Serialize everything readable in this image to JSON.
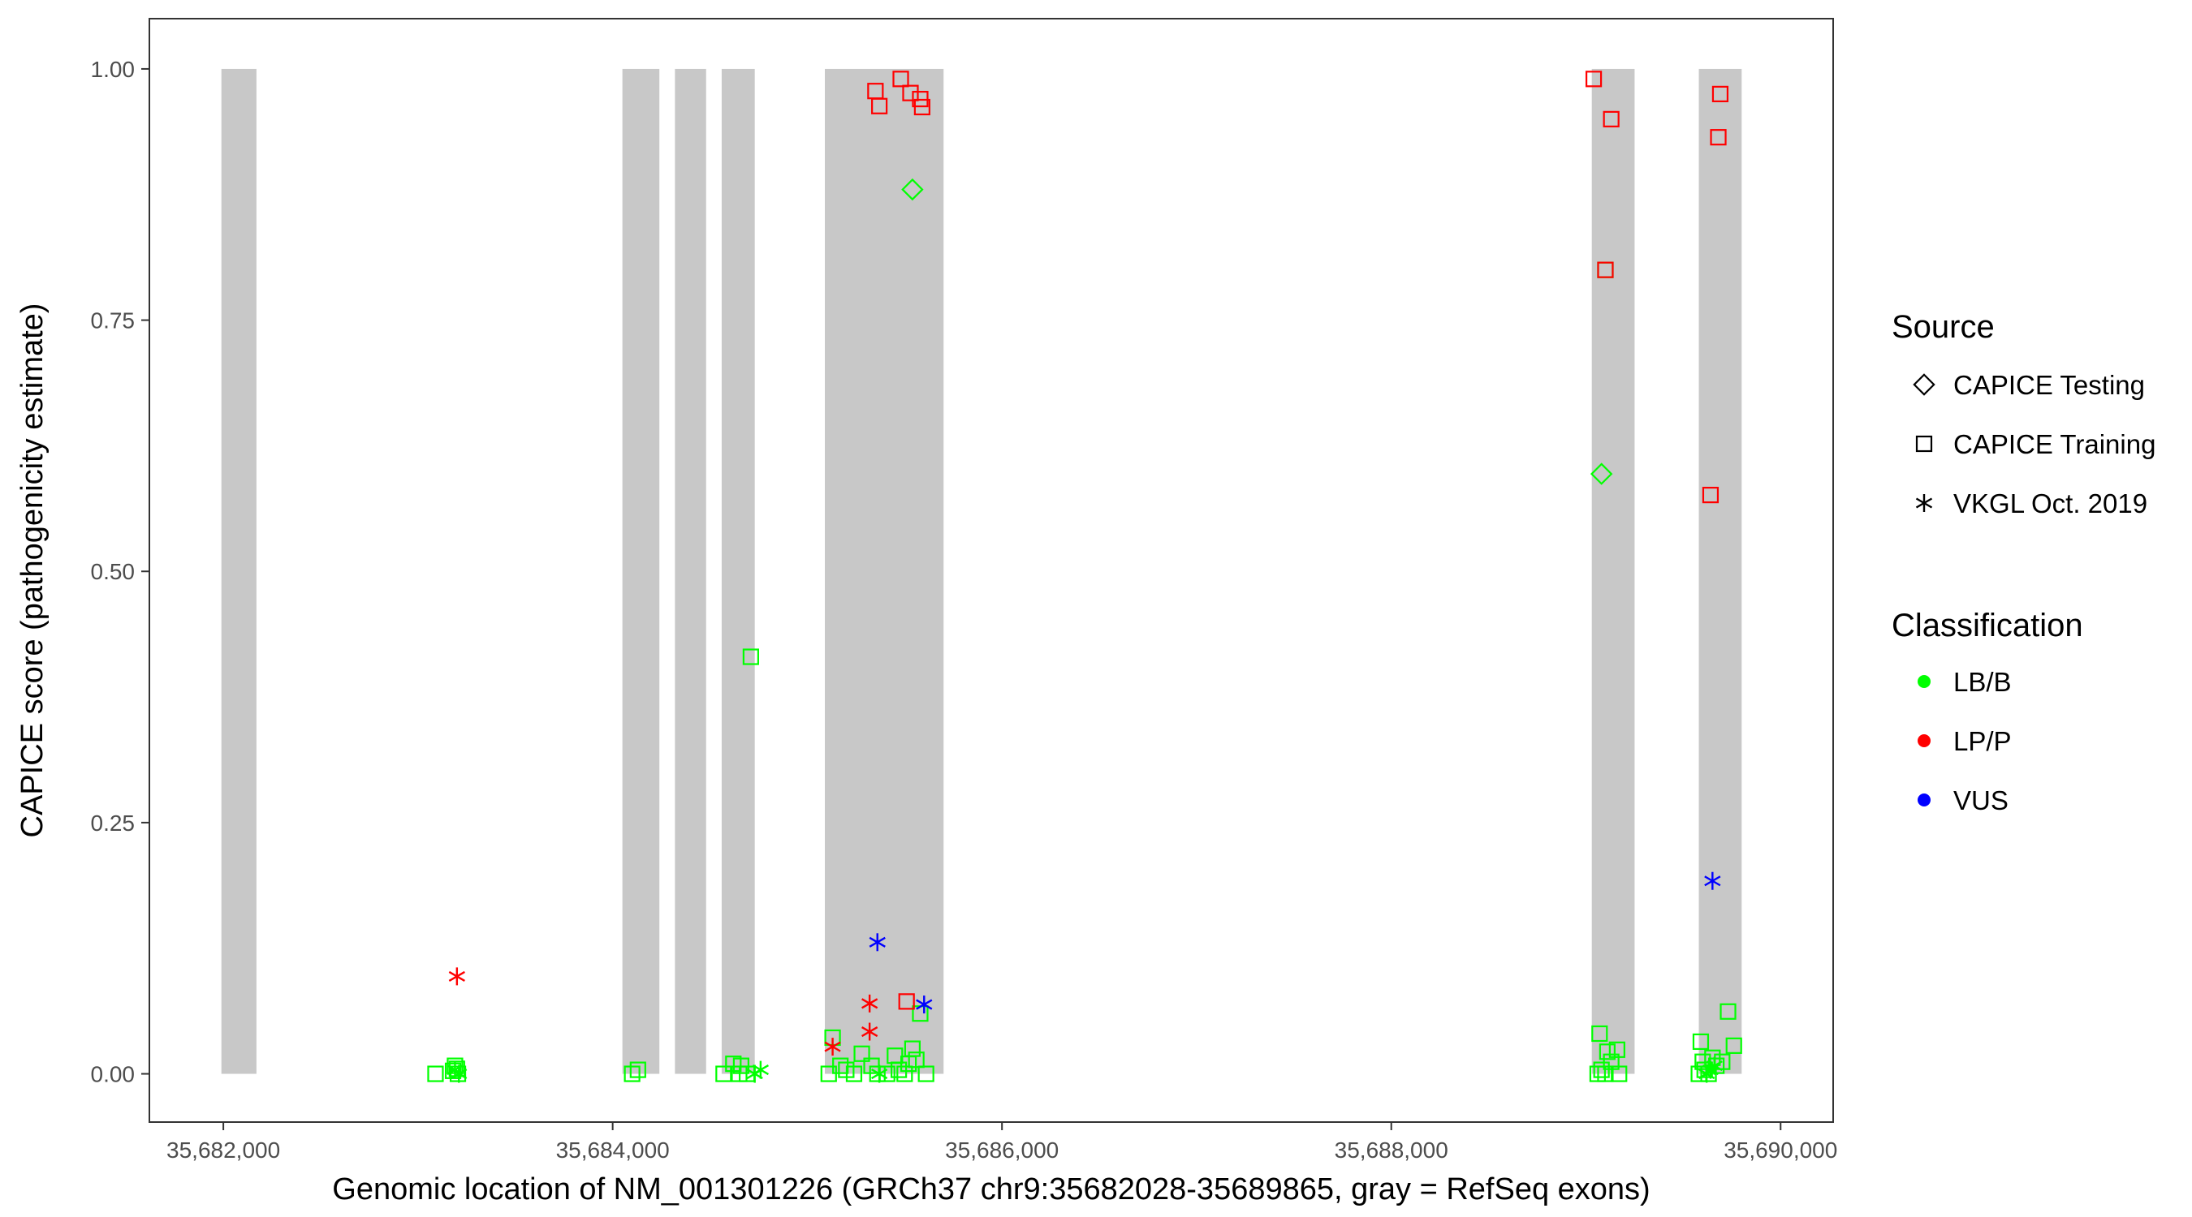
{
  "chart_data": {
    "type": "scatter",
    "title": "",
    "xlabel": "Genomic location of NM_001301226 (GRCh37 chr9:35682028-35689865, gray = RefSeq exons)",
    "ylabel": "CAPICE score (pathogenicity estimate)",
    "xlim": [
      35681620,
      35690270
    ],
    "ylim": [
      -0.048,
      1.05
    ],
    "x_ticks": [
      35682000,
      35684000,
      35686000,
      35688000,
      35690000
    ],
    "x_tick_labels": [
      "35,682,000",
      "35,684,000",
      "35,686,000",
      "35,688,000",
      "35,690,000"
    ],
    "y_ticks": [
      0,
      0.25,
      0.5,
      0.75,
      1.0
    ],
    "y_tick_labels": [
      "0.00",
      "0.25",
      "0.50",
      "0.75",
      "1.00"
    ],
    "grid": false,
    "panel_border": true,
    "exons": [
      [
        35681990,
        35682170
      ],
      [
        35684050,
        35684240
      ],
      [
        35684320,
        35684480
      ],
      [
        35684560,
        35684730
      ],
      [
        35685090,
        35685700
      ],
      [
        35689030,
        35689250
      ],
      [
        35689580,
        35689800
      ]
    ],
    "legend_placement": "right",
    "legends": [
      {
        "title": "Source",
        "entries": [
          {
            "label": "CAPICE Testing",
            "shape": "diamond"
          },
          {
            "label": "CAPICE Training",
            "shape": "square"
          },
          {
            "label": "VKGL Oct. 2019",
            "shape": "asterisk"
          }
        ]
      },
      {
        "title": "Classification",
        "entries": [
          {
            "label": "LB/B",
            "color": "#00ff00"
          },
          {
            "label": "LP/P",
            "color": "#ff0000"
          },
          {
            "label": "VUS",
            "color": "#0000ff"
          }
        ]
      }
    ],
    "series": [
      {
        "source": "CAPICE Testing",
        "classification": "LB/B",
        "shape": "diamond",
        "color": "#00ff00",
        "points": [
          [
            35685540,
            0.88
          ],
          [
            35689080,
            0.597
          ]
        ]
      },
      {
        "source": "CAPICE Training",
        "classification": "LB/B",
        "shape": "square",
        "color": "#00ff00",
        "points": [
          [
            35683090,
            0.0
          ],
          [
            35683180,
            0.003
          ],
          [
            35683190,
            0.008
          ],
          [
            35683205,
            0.0
          ],
          [
            35683200,
            0.005
          ],
          [
            35684100,
            0.0
          ],
          [
            35684130,
            0.004
          ],
          [
            35684570,
            0.0
          ],
          [
            35684620,
            0.01
          ],
          [
            35684650,
            0.0
          ],
          [
            35684660,
            0.008
          ],
          [
            35684690,
            0.0
          ],
          [
            35684710,
            0.415
          ],
          [
            35685110,
            0.0
          ],
          [
            35685130,
            0.036
          ],
          [
            35685170,
            0.008
          ],
          [
            35685200,
            0.004
          ],
          [
            35685240,
            0.0
          ],
          [
            35685280,
            0.02
          ],
          [
            35685330,
            0.008
          ],
          [
            35685360,
            0.0
          ],
          [
            35685410,
            0.0
          ],
          [
            35685450,
            0.018
          ],
          [
            35685470,
            0.004
          ],
          [
            35685500,
            0.0
          ],
          [
            35685520,
            0.01
          ],
          [
            35685540,
            0.025
          ],
          [
            35685560,
            0.014
          ],
          [
            35685580,
            0.06
          ],
          [
            35685610,
            0.0
          ],
          [
            35689060,
            0.0
          ],
          [
            35689070,
            0.04
          ],
          [
            35689080,
            0.004
          ],
          [
            35689100,
            0.0
          ],
          [
            35689110,
            0.022
          ],
          [
            35689130,
            0.012
          ],
          [
            35689160,
            0.024
          ],
          [
            35689170,
            0.0
          ],
          [
            35689100,
            0.8
          ],
          [
            35689580,
            0.0
          ],
          [
            35689590,
            0.032
          ],
          [
            35689600,
            0.012
          ],
          [
            35689610,
            0.004
          ],
          [
            35689630,
            0.0
          ],
          [
            35689650,
            0.016
          ],
          [
            35689670,
            0.008
          ],
          [
            35689700,
            0.012
          ],
          [
            35689730,
            0.062
          ],
          [
            35689760,
            0.028
          ]
        ]
      },
      {
        "source": "CAPICE Training",
        "classification": "LP/P",
        "shape": "square",
        "color": "#ff0000",
        "points": [
          [
            35685350,
            0.978
          ],
          [
            35685370,
            0.963
          ],
          [
            35685480,
            0.99
          ],
          [
            35685530,
            0.976
          ],
          [
            35685580,
            0.97
          ],
          [
            35685590,
            0.962
          ],
          [
            35685510,
            0.072
          ],
          [
            35689040,
            0.99
          ],
          [
            35689100,
            0.8
          ],
          [
            35689130,
            0.95
          ],
          [
            35689640,
            0.576
          ],
          [
            35689690,
            0.975
          ],
          [
            35689680,
            0.932
          ]
        ]
      },
      {
        "source": "VKGL Oct. 2019",
        "classification": "LB/B",
        "shape": "asterisk",
        "color": "#00ff00",
        "points": [
          [
            35683190,
            0.004
          ],
          [
            35683210,
            0.0
          ],
          [
            35684730,
            0.0
          ],
          [
            35684760,
            0.004
          ],
          [
            35685370,
            0.0
          ],
          [
            35689620,
            0.0
          ],
          [
            35689640,
            0.004
          ],
          [
            35689660,
            0.008
          ]
        ]
      },
      {
        "source": "VKGL Oct. 2019",
        "classification": "LP/P",
        "shape": "asterisk",
        "color": "#ff0000",
        "points": [
          [
            35683200,
            0.097
          ],
          [
            35685130,
            0.027
          ],
          [
            35685320,
            0.07
          ],
          [
            35685320,
            0.042
          ]
        ]
      },
      {
        "source": "VKGL Oct. 2019",
        "classification": "VUS",
        "shape": "asterisk",
        "color": "#0000ff",
        "points": [
          [
            35685360,
            0.131
          ],
          [
            35685600,
            0.069
          ],
          [
            35689650,
            0.192
          ]
        ]
      }
    ]
  }
}
